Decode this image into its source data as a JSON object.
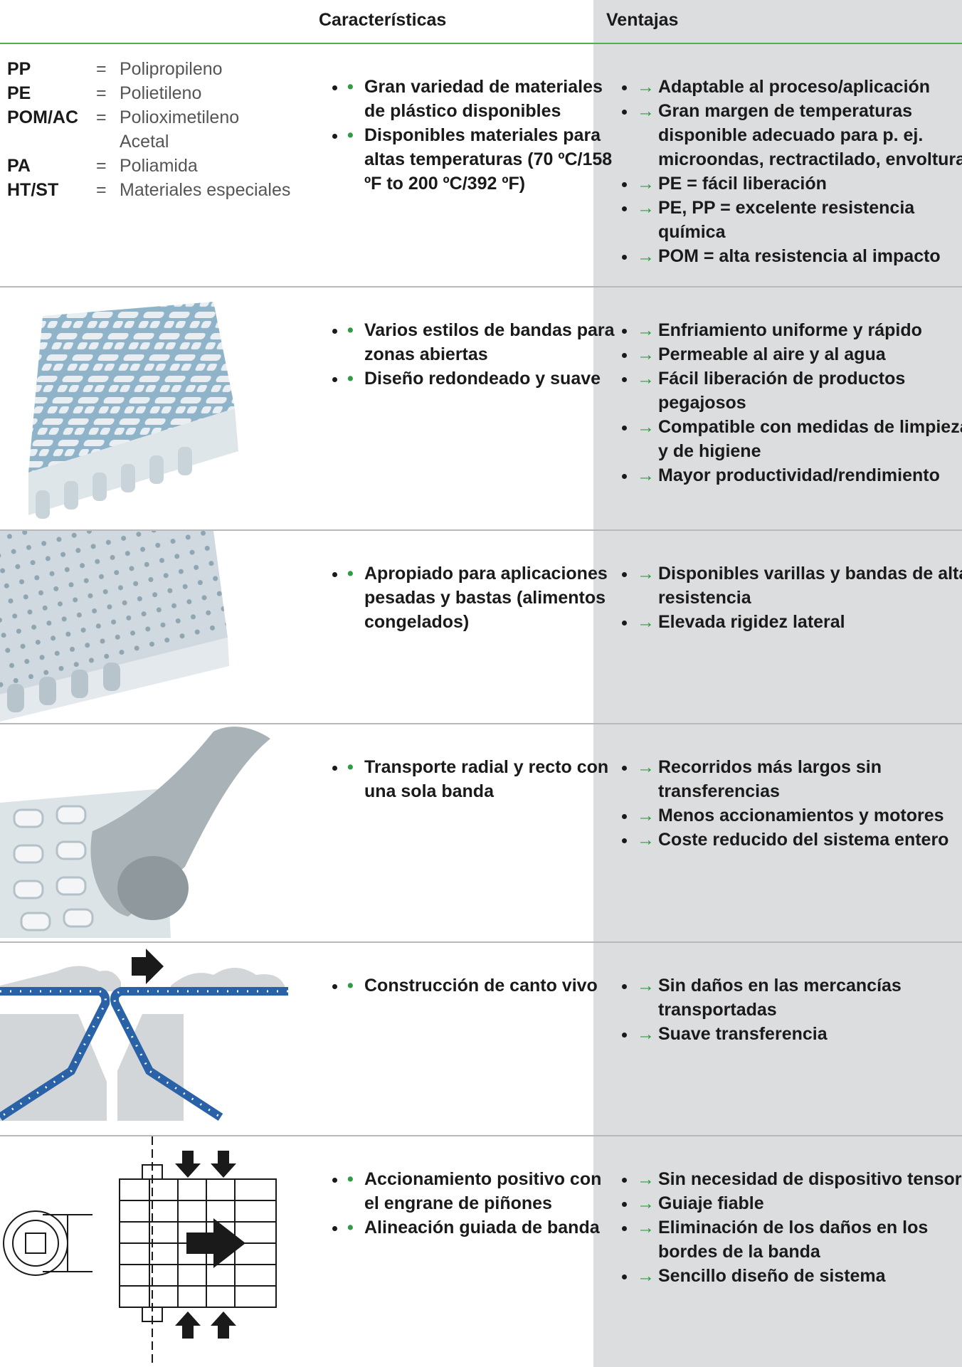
{
  "header": {
    "features": "Características",
    "advantages": "Ventajas"
  },
  "materials": [
    {
      "abbr": "PP",
      "eq": "=",
      "name": [
        "Polipropileno"
      ]
    },
    {
      "abbr": "PE",
      "eq": "=",
      "name": [
        "Polietileno"
      ]
    },
    {
      "abbr": "POM/AC",
      "eq": "=",
      "name": [
        "Polioximetileno",
        "Acetal"
      ]
    },
    {
      "abbr": "PA",
      "eq": "=",
      "name": [
        "Poliamida"
      ]
    },
    {
      "abbr": "HT/ST",
      "eq": "=",
      "name": [
        "Materiales especiales"
      ]
    }
  ],
  "rows": [
    {
      "features": [
        "Gran variedad de materiales de plástico disponibles",
        "Disponibles materiales para altas temperaturas (70 ºC/158 ºF to 200 ºC/392 ºF)"
      ],
      "advantages": [
        "Adaptable al proceso/aplicación",
        "Gran margen de temperaturas disponible adecuado para p. ej. microondas, rectractilado, envoltura",
        "PE = fácil liberación",
        "PE, PP = excelente resistencia química",
        "POM = alta resistencia al impacto"
      ]
    },
    {
      "features": [
        "Varios estilos de bandas para zonas abiertas",
        "Diseño redondeado y suave"
      ],
      "advantages": [
        "Enfriamiento uniforme y rápido",
        "Permeable al aire y al agua",
        "Fácil liberación de productos pegajosos",
        "Compatible con medidas de limpieza y de higiene",
        "Mayor productividad/rendimiento"
      ]
    },
    {
      "features": [
        "Apropiado para aplicaciones pesadas y bastas (alimentos congelados)"
      ],
      "advantages": [
        "Disponibles varillas y bandas de alta resistencia",
        "Elevada rigidez lateral"
      ]
    },
    {
      "features": [
        "Transporte radial y recto con una sola banda"
      ],
      "advantages": [
        "Recorridos más largos sin transferencias",
        "Menos accionamientos y motores",
        "Coste reducido del sistema entero"
      ]
    },
    {
      "features": [
        "Construcción de canto vivo"
      ],
      "advantages": [
        "Sin daños en las mercancías transportadas",
        "Suave transferencia"
      ]
    },
    {
      "features": [
        "Accionamiento positivo con el engrane de piñones",
        "Alineación guiada de banda"
      ],
      "advantages": [
        "Sin necesidad de dispositivo tensor",
        "Guiaje fiable",
        "Eliminación de los daños en los bordes de la banda",
        "Sencillo diseño de sistema"
      ]
    }
  ]
}
